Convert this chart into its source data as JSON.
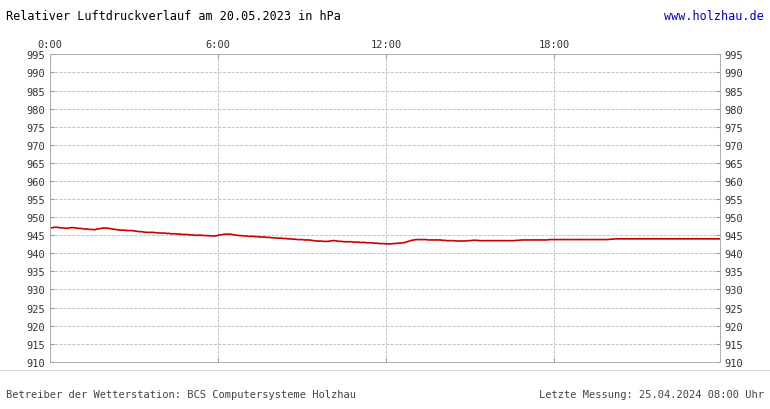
{
  "title": "Relativer Luftdruckverlauf am 20.05.2023 in hPa",
  "title_color": "#000000",
  "url_text": "www.holzhau.de",
  "url_color": "#0000bb",
  "footer_left": "Betreiber der Wetterstation: BCS Computersysteme Holzhau",
  "footer_right": "Letzte Messung: 25.04.2024 08:00 Uhr",
  "footer_color": "#444444",
  "bg_color": "#ffffff",
  "plot_bg_color": "#ffffff",
  "grid_color": "#bbbbbb",
  "line_color": "#cc0000",
  "line_width": 1.2,
  "ylim": [
    910,
    995
  ],
  "ytick_step": 5,
  "xtick_labels": [
    "0:00",
    "6:00",
    "12:00",
    "18:00"
  ],
  "xtick_positions": [
    0,
    72,
    144,
    216
  ],
  "total_points": 288,
  "pressure_data": [
    947.0,
    947.1,
    947.2,
    947.2,
    947.1,
    947.0,
    947.0,
    946.9,
    947.0,
    947.1,
    947.1,
    947.0,
    946.9,
    946.9,
    946.8,
    946.7,
    946.7,
    946.6,
    946.6,
    946.5,
    946.7,
    946.8,
    946.9,
    947.0,
    947.0,
    946.9,
    946.8,
    946.7,
    946.6,
    946.5,
    946.4,
    946.4,
    946.4,
    946.3,
    946.3,
    946.3,
    946.2,
    946.1,
    946.0,
    946.0,
    945.9,
    945.8,
    945.8,
    945.8,
    945.8,
    945.7,
    945.7,
    945.6,
    945.6,
    945.6,
    945.5,
    945.5,
    945.4,
    945.4,
    945.4,
    945.3,
    945.3,
    945.2,
    945.2,
    945.2,
    945.1,
    945.1,
    945.0,
    945.0,
    945.0,
    945.0,
    944.9,
    944.9,
    944.9,
    944.8,
    944.8,
    944.8,
    945.0,
    945.1,
    945.2,
    945.3,
    945.3,
    945.3,
    945.2,
    945.1,
    945.0,
    944.9,
    944.9,
    944.8,
    944.8,
    944.7,
    944.7,
    944.7,
    944.6,
    944.6,
    944.5,
    944.5,
    944.5,
    944.4,
    944.4,
    944.3,
    944.3,
    944.2,
    944.2,
    944.2,
    944.1,
    944.1,
    944.0,
    944.0,
    943.9,
    943.9,
    943.8,
    943.8,
    943.8,
    943.7,
    943.7,
    943.7,
    943.6,
    943.5,
    943.4,
    943.4,
    943.4,
    943.3,
    943.3,
    943.3,
    943.4,
    943.5,
    943.5,
    943.4,
    943.3,
    943.3,
    943.2,
    943.2,
    943.2,
    943.2,
    943.1,
    943.1,
    943.1,
    943.0,
    943.0,
    943.0,
    942.9,
    942.9,
    942.9,
    942.8,
    942.8,
    942.7,
    942.7,
    942.7,
    942.6,
    942.6,
    942.6,
    942.7,
    942.7,
    942.8,
    942.8,
    942.9,
    943.0,
    943.2,
    943.4,
    943.6,
    943.7,
    943.8,
    943.8,
    943.8,
    943.8,
    943.8,
    943.7,
    943.7,
    943.7,
    943.7,
    943.7,
    943.7,
    943.6,
    943.6,
    943.5,
    943.5,
    943.5,
    943.5,
    943.4,
    943.4,
    943.4,
    943.4,
    943.4,
    943.5,
    943.5,
    943.6,
    943.6,
    943.6,
    943.5,
    943.5,
    943.5,
    943.5,
    943.5,
    943.5,
    943.5,
    943.5,
    943.5,
    943.5,
    943.5,
    943.5,
    943.5,
    943.5,
    943.5,
    943.5,
    943.6,
    943.6,
    943.7,
    943.7,
    943.7,
    943.7,
    943.7,
    943.7,
    943.7,
    943.7,
    943.7,
    943.7,
    943.7,
    943.7,
    943.8,
    943.8,
    943.8,
    943.8,
    943.8,
    943.8,
    943.8,
    943.8,
    943.8,
    943.8,
    943.8,
    943.8,
    943.8,
    943.8,
    943.8,
    943.8,
    943.8,
    943.8,
    943.8,
    943.8,
    943.8,
    943.8,
    943.8,
    943.8,
    943.8,
    943.8,
    943.9,
    943.9,
    944.0,
    944.0,
    944.0,
    944.0,
    944.0,
    944.0,
    944.0,
    944.0,
    944.0,
    944.0,
    944.0,
    944.0,
    944.0,
    944.0,
    944.0,
    944.0,
    944.0,
    944.0,
    944.0,
    944.0,
    944.0,
    944.0,
    944.0,
    944.0,
    944.0,
    944.0,
    944.0,
    944.0,
    944.0,
    944.0,
    944.0,
    944.0,
    944.0,
    944.0,
    944.0,
    944.0,
    944.0,
    944.0,
    944.0,
    944.0,
    944.0,
    944.0,
    944.0,
    944.0,
    944.0,
    944.0
  ]
}
